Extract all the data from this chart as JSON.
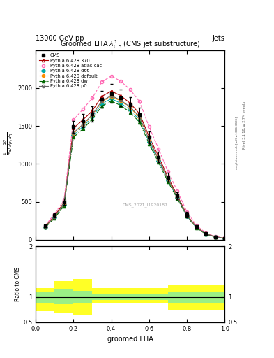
{
  "title_top": "13000 GeV pp",
  "title_right": "Jets",
  "plot_title": "Groomed LHA $\\lambda^{1}_{0.5}$ (CMS jet substructure)",
  "xlabel": "groomed LHA",
  "ylabel_ratio": "Ratio to CMS",
  "watermark": "CMS_2021_I1920187",
  "right_label": "mcplots.cern.ch [arXiv:1306.3436]",
  "rivet_label": "Rivet 3.1.10, ≥ 2.7M events",
  "cms_x": [
    0.05,
    0.1,
    0.15,
    0.2,
    0.25,
    0.3,
    0.35,
    0.4,
    0.45,
    0.5,
    0.55,
    0.6,
    0.65,
    0.7,
    0.75,
    0.8,
    0.85,
    0.9,
    0.95,
    1.0
  ],
  "cms_y": [
    180,
    320,
    500,
    1490,
    1570,
    1660,
    1850,
    1930,
    1870,
    1780,
    1650,
    1350,
    1090,
    820,
    580,
    330,
    170,
    80,
    40,
    20
  ],
  "cms_yerr": [
    20,
    30,
    40,
    80,
    90,
    100,
    110,
    120,
    110,
    100,
    90,
    80,
    70,
    60,
    50,
    40,
    25,
    15,
    10,
    5
  ],
  "p6_370_y": [
    175,
    315,
    490,
    1470,
    1580,
    1700,
    1890,
    1960,
    1900,
    1800,
    1660,
    1360,
    1100,
    825,
    580,
    330,
    170,
    80,
    40,
    20
  ],
  "p6_atlas_y": [
    185,
    340,
    520,
    1580,
    1720,
    1870,
    2080,
    2160,
    2090,
    1980,
    1820,
    1490,
    1200,
    900,
    640,
    370,
    190,
    90,
    45,
    22
  ],
  "p6_d6t_y": [
    165,
    295,
    460,
    1380,
    1490,
    1620,
    1790,
    1860,
    1800,
    1710,
    1580,
    1290,
    1040,
    780,
    550,
    315,
    160,
    75,
    38,
    18
  ],
  "p6_default_y": [
    168,
    300,
    465,
    1400,
    1510,
    1640,
    1820,
    1890,
    1830,
    1740,
    1610,
    1310,
    1060,
    795,
    560,
    320,
    163,
    77,
    38,
    19
  ],
  "p6_dw_y": [
    160,
    285,
    445,
    1350,
    1460,
    1590,
    1760,
    1830,
    1770,
    1680,
    1550,
    1265,
    1020,
    765,
    540,
    308,
    157,
    74,
    37,
    18
  ],
  "p6_p0_y": [
    170,
    305,
    470,
    1410,
    1520,
    1650,
    1830,
    1900,
    1840,
    1750,
    1620,
    1320,
    1065,
    800,
    563,
    322,
    164,
    78,
    39,
    19
  ],
  "ratio_x_edges": [
    0.0,
    0.1,
    0.2,
    0.3,
    0.5,
    0.7,
    1.0
  ],
  "ratio_yellow_low": [
    0.72,
    0.68,
    0.65,
    0.88,
    0.88,
    0.75,
    0.88
  ],
  "ratio_yellow_high": [
    1.18,
    1.32,
    1.35,
    1.18,
    1.18,
    1.25,
    1.18
  ],
  "ratio_green_low": [
    0.88,
    0.85,
    0.88,
    0.94,
    0.94,
    0.88,
    0.94
  ],
  "ratio_green_high": [
    1.1,
    1.15,
    1.12,
    1.06,
    1.06,
    1.1,
    1.06
  ],
  "colors": {
    "cms": "#000000",
    "p6_370": "#aa0000",
    "p6_atlas": "#ff69b4",
    "p6_d6t": "#00aaaa",
    "p6_default": "#ff8c00",
    "p6_dw": "#006600",
    "p6_p0": "#666666"
  },
  "ylim_main": [
    0,
    2500
  ],
  "ylim_ratio": [
    0.5,
    2.0
  ],
  "yticks_main": [
    0,
    500,
    1000,
    1500,
    2000
  ],
  "ytick_labels_main": [
    "0",
    "500",
    "1000",
    "1500",
    "2000"
  ]
}
